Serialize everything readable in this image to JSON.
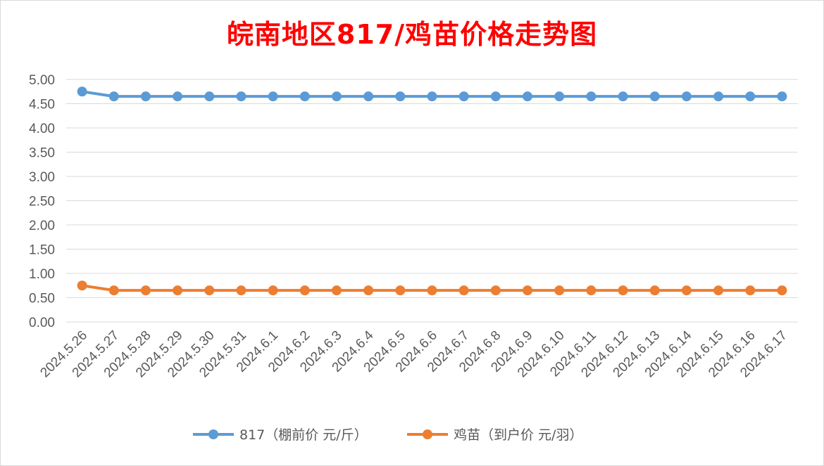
{
  "chart_data": {
    "type": "line",
    "title": "皖南地区817/鸡苗价格走势图",
    "categories": [
      "2024.5.26",
      "2024.5.27",
      "2024.5.28",
      "2024.5.29",
      "2024.5.30",
      "2024.5.31",
      "2024.6.1",
      "2024.6.2",
      "2024.6.3",
      "2024.6.4",
      "2024.6.5",
      "2024.6.6",
      "2024.6.7",
      "2024.6.8",
      "2024.6.9",
      "2024.6.10",
      "2024.6.11",
      "2024.6.12",
      "2024.6.13",
      "2024.6.14",
      "2024.6.15",
      "2024.6.16",
      "2024.6.17"
    ],
    "series": [
      {
        "name": "817（棚前价 元/斤）",
        "color": "#5b9bd5",
        "values": [
          4.75,
          4.65,
          4.65,
          4.65,
          4.65,
          4.65,
          4.65,
          4.65,
          4.65,
          4.65,
          4.65,
          4.65,
          4.65,
          4.65,
          4.65,
          4.65,
          4.65,
          4.65,
          4.65,
          4.65,
          4.65,
          4.65,
          4.65
        ]
      },
      {
        "name": "鸡苗（到户价 元/羽）",
        "color": "#ed7d31",
        "values": [
          0.75,
          0.65,
          0.65,
          0.65,
          0.65,
          0.65,
          0.65,
          0.65,
          0.65,
          0.65,
          0.65,
          0.65,
          0.65,
          0.65,
          0.65,
          0.65,
          0.65,
          0.65,
          0.65,
          0.65,
          0.65,
          0.65,
          0.65
        ]
      }
    ],
    "ylim": [
      0,
      5
    ],
    "yticks": [
      "0.00",
      "0.50",
      "1.00",
      "1.50",
      "2.00",
      "2.50",
      "3.00",
      "3.50",
      "4.00",
      "4.50",
      "5.00"
    ],
    "grid": true,
    "legend": "bottom"
  }
}
